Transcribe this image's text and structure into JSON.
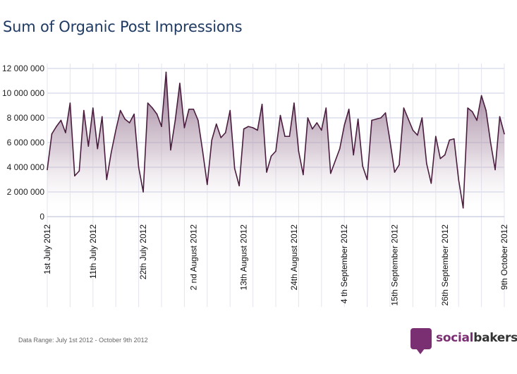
{
  "title": "Sum of Organic Post Impressions",
  "footnote": "Data Range: July 1st 2012 - October 9th 2012",
  "brand": {
    "part1": "social",
    "part2": "bakers"
  },
  "colors": {
    "line": "#4a1d3f",
    "fill": "#7d5577",
    "grid": "#c9cce3",
    "title": "#1f3b63",
    "brand": "#7a2f73"
  },
  "chart_data": {
    "type": "area",
    "title": "Sum of Organic Post Impressions",
    "xlabel": "",
    "ylabel": "",
    "ylim": [
      0,
      12000000
    ],
    "y_ticks": [
      "0",
      "2 000 000",
      "4 000 000",
      "6 000 000",
      "8 000 000",
      "10 000 000",
      "12 000 000"
    ],
    "y_tick_values": [
      0,
      2000000,
      4000000,
      6000000,
      8000000,
      10000000,
      12000000
    ],
    "x_ticks": [
      {
        "day": 1,
        "label": "1st July 2012"
      },
      {
        "day": 11,
        "label": "11th July 2012"
      },
      {
        "day": 22,
        "label": "22th July 2012"
      },
      {
        "day": 33,
        "label": "2 nd August 2012"
      },
      {
        "day": 44,
        "label": "13th August 2012"
      },
      {
        "day": 55,
        "label": "24th August 2012"
      },
      {
        "day": 66,
        "label": "4 th September 2012"
      },
      {
        "day": 77,
        "label": "15th September 2012"
      },
      {
        "day": 88,
        "label": "26th September 2012"
      },
      {
        "day": 101,
        "label": "9th October 2012"
      }
    ],
    "grid": true,
    "series": [
      {
        "values": [
          3800000,
          6700000,
          7300000,
          7800000,
          6800000,
          9200000,
          3300000,
          3700000,
          8600000,
          5700000,
          8800000,
          5500000,
          8100000,
          3000000,
          5200000,
          7000000,
          8600000,
          7900000,
          7600000,
          8300000,
          4000000,
          2000000,
          9200000,
          8800000,
          8300000,
          7300000,
          11700000,
          5400000,
          7800000,
          10800000,
          7200000,
          8700000,
          8700000,
          7800000,
          5300000,
          2600000,
          6200000,
          7500000,
          6400000,
          6800000,
          8600000,
          3900000,
          2500000,
          7100000,
          7300000,
          7200000,
          7000000,
          9100000,
          3600000,
          4900000,
          5300000,
          8200000,
          6500000,
          6500000,
          9200000,
          5300000,
          3400000,
          8000000,
          7100000,
          7600000,
          7000000,
          8800000,
          3500000,
          4500000,
          5500000,
          7400000,
          8700000,
          5000000,
          7900000,
          4100000,
          3000000,
          7800000,
          7900000,
          8000000,
          8400000,
          6100000,
          3600000,
          4200000,
          8800000,
          7900000,
          7000000,
          6600000,
          8000000,
          4300000,
          2700000,
          6500000,
          4700000,
          5000000,
          6200000,
          6300000,
          3000000,
          700000,
          8800000,
          8500000,
          7800000,
          9800000,
          8600000,
          6000000,
          3800000,
          8100000,
          6700000
        ]
      }
    ]
  }
}
